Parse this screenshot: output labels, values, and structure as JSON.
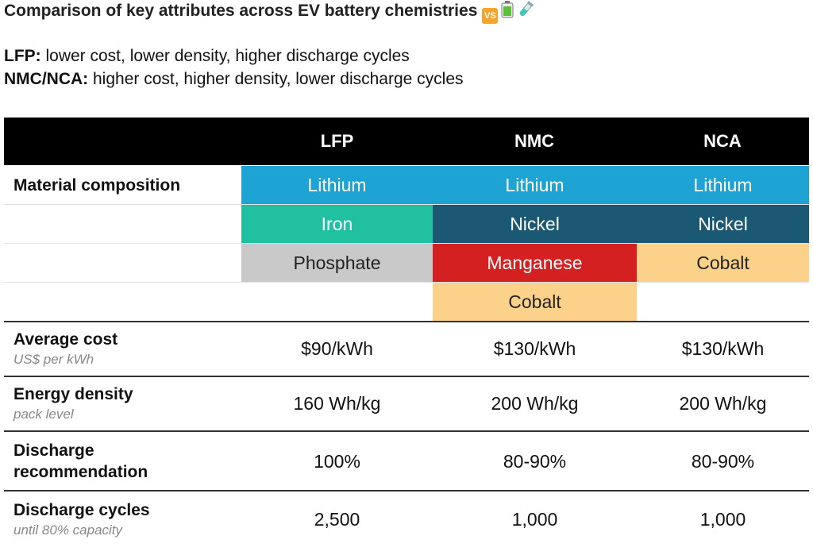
{
  "title": "Comparison of key attributes across EV battery chemistries",
  "subtitle_lines": [
    {
      "label": "LFP:",
      "text": " lower cost, lower density, higher discharge cycles"
    },
    {
      "label": "NMC/NCA:",
      "text": " higher cost, higher density, lower discharge cycles"
    }
  ],
  "icons": [
    "vs-icon",
    "battery-icon",
    "test-tube-icon"
  ],
  "icon_text": {
    "vs": "VS"
  },
  "columns": [
    "LFP",
    "NMC",
    "NCA"
  ],
  "material_label": "Material composition",
  "materials": {
    "LFP": [
      "Lithium",
      "Iron",
      "Phosphate"
    ],
    "NMC": [
      "Lithium",
      "Nickel",
      "Manganese",
      "Cobalt"
    ],
    "NCA": [
      "Lithium",
      "Nickel",
      "Cobalt"
    ]
  },
  "colors": {
    "Lithium": "#1ea4d4",
    "Iron": "#20c0a0",
    "Phosphate": "#c9c9c9",
    "Nickel": "#1b5874",
    "Manganese": "#d42020",
    "Cobalt": "#fcd28a",
    "header": "#000000"
  },
  "chart_data": {
    "type": "table",
    "title": "Comparison of key attributes across EV battery chemistries",
    "columns": [
      "LFP",
      "NMC",
      "NCA"
    ],
    "rows": [
      {
        "label": "Average cost",
        "sublabel": "US$ per kWh",
        "values": [
          "$90/kWh",
          "$130/kWh",
          "$130/kWh"
        ]
      },
      {
        "label": "Energy density",
        "sublabel": "pack level",
        "values": [
          "160 Wh/kg",
          "200 Wh/kg",
          "200 Wh/kg"
        ]
      },
      {
        "label": "Discharge recommendation",
        "label_lines": [
          "Discharge",
          "recommendation"
        ],
        "sublabel": "",
        "values": [
          "100%",
          "80-90%",
          "80-90%"
        ]
      },
      {
        "label": "Discharge cycles",
        "sublabel": "until 80% capacity",
        "values": [
          "2,500",
          "1,000",
          "1,000"
        ]
      }
    ],
    "numeric": {
      "average_cost_usd_per_kwh": [
        90,
        130,
        130
      ],
      "energy_density_wh_per_kg": [
        160,
        200,
        200
      ],
      "discharge_recommendation_pct": [
        "100",
        "80-90",
        "80-90"
      ],
      "discharge_cycles": [
        2500,
        1000,
        1000
      ]
    }
  }
}
